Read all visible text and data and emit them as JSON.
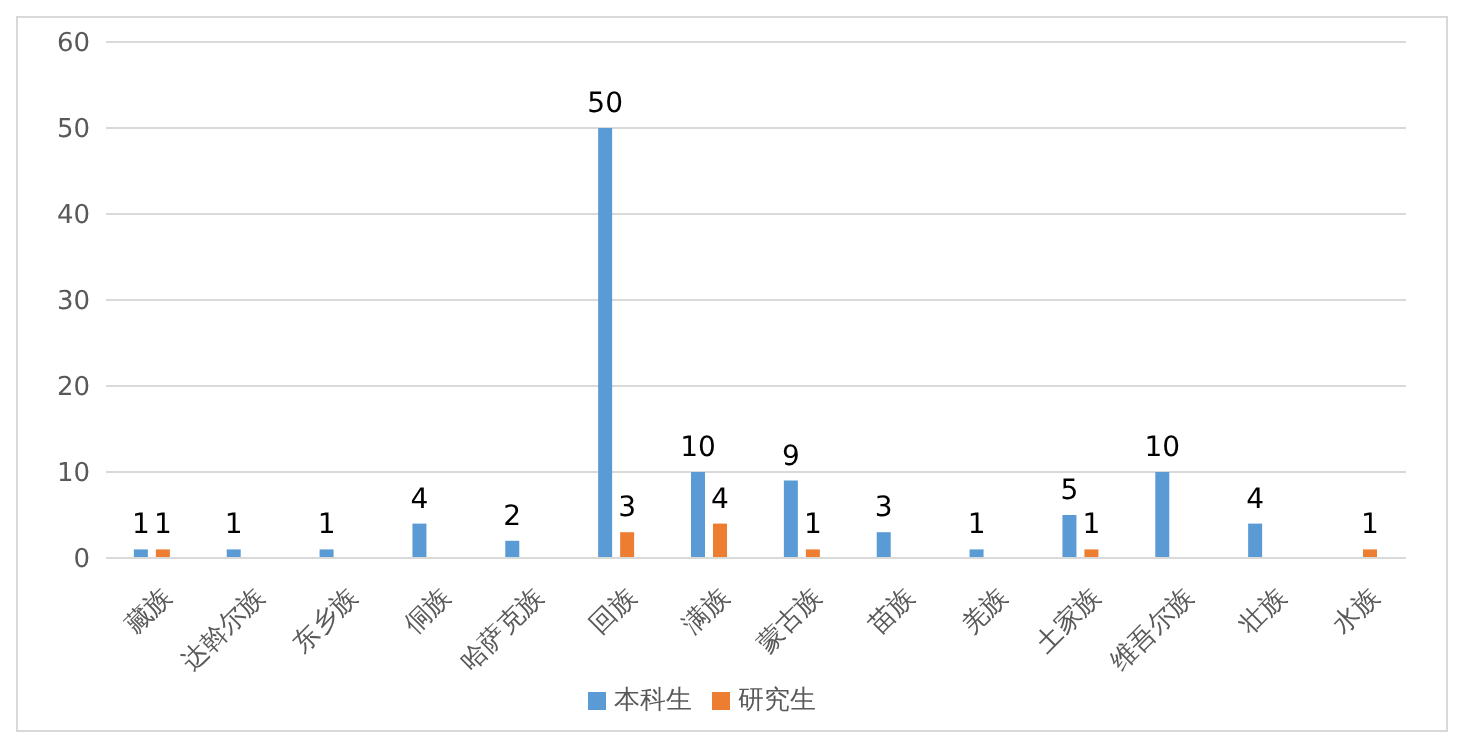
{
  "chart_data": {
    "type": "bar",
    "categories": [
      "藏族",
      "达斡尔族",
      "东乡族",
      "侗族",
      "哈萨克族",
      "回族",
      "满族",
      "蒙古族",
      "苗族",
      "羌族",
      "土家族",
      "维吾尔族",
      "壮族",
      "水族"
    ],
    "series": [
      {
        "name": "本科生",
        "color": "#5b9bd5",
        "values": [
          1,
          1,
          1,
          4,
          2,
          50,
          10,
          9,
          3,
          1,
          5,
          10,
          4,
          null
        ]
      },
      {
        "name": "研究生",
        "color": "#ed7d31",
        "values": [
          1,
          null,
          null,
          null,
          null,
          3,
          4,
          1,
          null,
          null,
          1,
          null,
          null,
          1
        ]
      }
    ],
    "ylim": [
      0,
      60
    ],
    "yticks": [
      0,
      10,
      20,
      30,
      40,
      50,
      60
    ],
    "grid": "y",
    "legend": "bottom",
    "data_labels": true
  }
}
